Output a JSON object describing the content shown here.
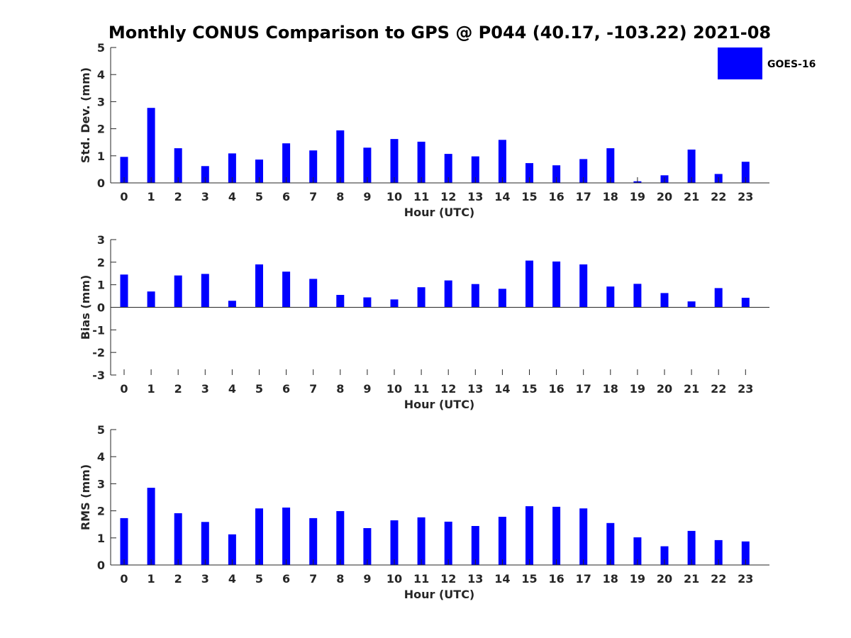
{
  "title": "Monthly CONUS Comparison to GPS @ P044 (40.17, -103.22) 2021-08",
  "colors": {
    "bar": "#0000ff",
    "axis": "#262626"
  },
  "chart_data": [
    {
      "type": "bar",
      "xlabel": "Hour (UTC)",
      "ylabel": "Std. Dev. (mm)",
      "ylim": [
        0,
        5
      ],
      "yticks": [
        0,
        1,
        2,
        3,
        4,
        5
      ],
      "categories": [
        "0",
        "1",
        "2",
        "3",
        "4",
        "5",
        "6",
        "7",
        "8",
        "9",
        "10",
        "11",
        "12",
        "13",
        "14",
        "15",
        "16",
        "17",
        "18",
        "19",
        "20",
        "21",
        "22",
        "23"
      ],
      "series": [
        {
          "name": "GOES-16",
          "values": [
            0.96,
            2.77,
            1.28,
            0.62,
            1.09,
            0.86,
            1.46,
            1.2,
            1.94,
            1.3,
            1.62,
            1.52,
            1.07,
            0.98,
            1.59,
            0.73,
            0.65,
            0.88,
            1.28,
            0.06,
            0.28,
            1.23,
            0.33,
            0.78
          ]
        }
      ],
      "legend": "top-right",
      "grid": false
    },
    {
      "type": "bar",
      "xlabel": "Hour (UTC)",
      "ylabel": "Bias (mm)",
      "ylim": [
        -3,
        3
      ],
      "yticks": [
        -3,
        -2,
        -1,
        0,
        1,
        2,
        3
      ],
      "categories": [
        "0",
        "1",
        "2",
        "3",
        "4",
        "5",
        "6",
        "7",
        "8",
        "9",
        "10",
        "11",
        "12",
        "13",
        "14",
        "15",
        "16",
        "17",
        "18",
        "19",
        "20",
        "21",
        "22",
        "23"
      ],
      "series": [
        {
          "name": "GOES-16",
          "values": [
            1.45,
            0.7,
            1.41,
            1.48,
            0.29,
            1.9,
            1.58,
            1.26,
            0.55,
            0.44,
            0.35,
            0.89,
            1.19,
            1.03,
            0.82,
            2.07,
            2.03,
            1.9,
            0.92,
            1.04,
            0.63,
            0.26,
            0.85,
            0.42
          ]
        }
      ],
      "grid": false
    },
    {
      "type": "bar",
      "xlabel": "Hour (UTC)",
      "ylabel": "RMS (mm)",
      "ylim": [
        0,
        5
      ],
      "yticks": [
        0,
        1,
        2,
        3,
        4,
        5
      ],
      "categories": [
        "0",
        "1",
        "2",
        "3",
        "4",
        "5",
        "6",
        "7",
        "8",
        "9",
        "10",
        "11",
        "12",
        "13",
        "14",
        "15",
        "16",
        "17",
        "18",
        "19",
        "20",
        "21",
        "22",
        "23"
      ],
      "series": [
        {
          "name": "GOES-16",
          "values": [
            1.73,
            2.85,
            1.91,
            1.59,
            1.13,
            2.09,
            2.12,
            1.73,
            1.99,
            1.36,
            1.65,
            1.76,
            1.6,
            1.44,
            1.78,
            2.17,
            2.15,
            2.09,
            1.55,
            1.02,
            0.69,
            1.26,
            0.92,
            0.87
          ]
        }
      ],
      "grid": false
    }
  ]
}
